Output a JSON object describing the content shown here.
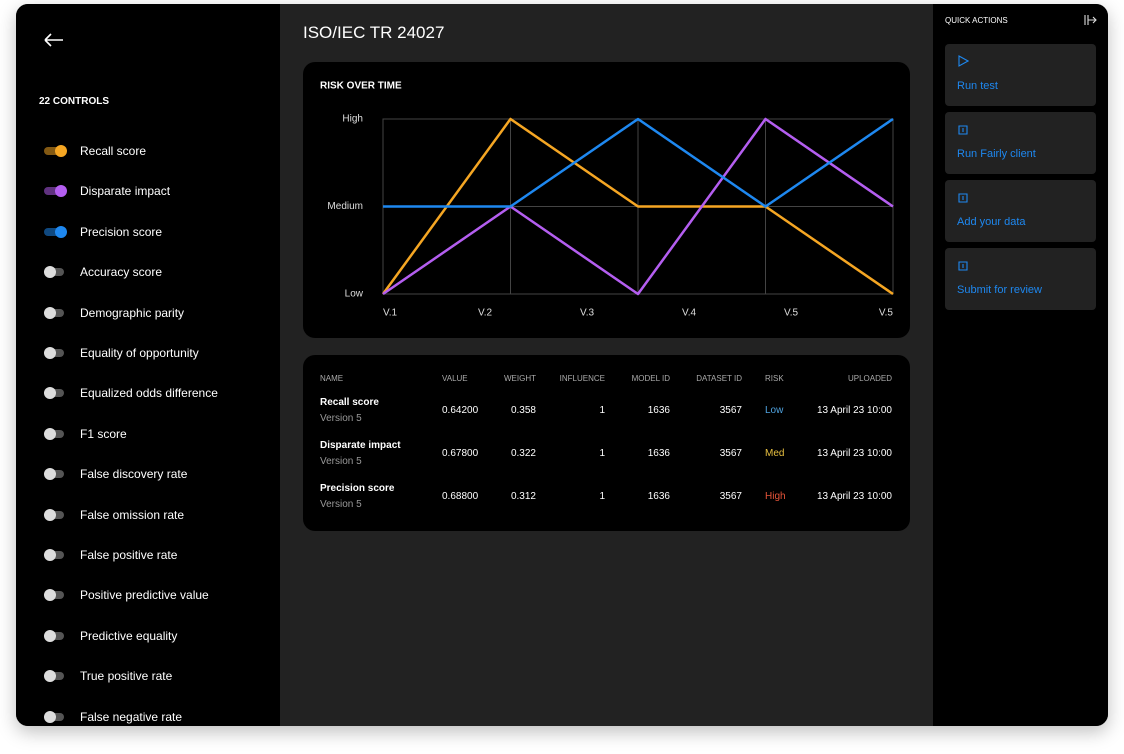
{
  "sidebar": {
    "heading": "22 CONTROLS",
    "controls": [
      {
        "label": "Recall score",
        "on": true,
        "color": "#f5a623"
      },
      {
        "label": "Disparate impact",
        "on": true,
        "color": "#b45ef0"
      },
      {
        "label": "Precision score",
        "on": true,
        "color": "#1e88f0"
      },
      {
        "label": "Accuracy score",
        "on": false
      },
      {
        "label": "Demographic parity",
        "on": false
      },
      {
        "label": "Equality of opportunity",
        "on": false
      },
      {
        "label": "Equalized odds difference",
        "on": false
      },
      {
        "label": "F1 score",
        "on": false
      },
      {
        "label": "False discovery rate",
        "on": false
      },
      {
        "label": "False omission rate",
        "on": false
      },
      {
        "label": "False positive rate",
        "on": false
      },
      {
        "label": "Positive predictive value",
        "on": false
      },
      {
        "label": "Predictive equality",
        "on": false
      },
      {
        "label": "True positive rate",
        "on": false
      },
      {
        "label": "False negative rate",
        "on": false
      }
    ]
  },
  "header": {
    "title": "ISO/IEC TR 24027"
  },
  "chart_data": {
    "type": "line",
    "title": "RISK OVER TIME",
    "x": [
      1,
      2,
      3,
      4,
      5
    ],
    "xlim": [
      1,
      5
    ],
    "xticks": [
      {
        "value": 1,
        "label": "V.1"
      },
      {
        "value": 1.8,
        "label": "V.2"
      },
      {
        "value": 2.6,
        "label": "V.3"
      },
      {
        "value": 3.4,
        "label": "V.4"
      },
      {
        "value": 4.2,
        "label": "V.5"
      },
      {
        "value": 5,
        "label": "V.5"
      }
    ],
    "ylim": [
      0,
      2
    ],
    "yticks": [
      {
        "value": 0,
        "label": "Low"
      },
      {
        "value": 1,
        "label": "Medium"
      },
      {
        "value": 2,
        "label": "High"
      }
    ],
    "grid": true,
    "series": [
      {
        "name": "Recall score",
        "color": "#f5a623",
        "values": [
          0,
          2,
          1,
          1,
          0
        ]
      },
      {
        "name": "Disparate impact",
        "color": "#b45ef0",
        "values": [
          0,
          1,
          0,
          2,
          1
        ]
      },
      {
        "name": "Precision score",
        "color": "#1e88f0",
        "values": [
          1,
          1,
          2,
          1,
          2
        ]
      }
    ]
  },
  "table": {
    "columns": [
      "NAME",
      "VALUE",
      "WEIGHT",
      "INFLUENCE",
      "MODEL ID",
      "DATASET ID",
      "RISK",
      "UPLOADED"
    ],
    "rows": [
      {
        "name": "Recall score",
        "version": "Version 5",
        "cells": [
          "0.64200",
          "0.358",
          "1",
          "1636",
          "3567"
        ],
        "risk": "Low",
        "risk_color": "#4fa3e0",
        "uploaded": "13 April 23 10:00"
      },
      {
        "name": "Disparate impact",
        "version": "Version 5",
        "cells": [
          "0.67800",
          "0.322",
          "1",
          "1636",
          "3567"
        ],
        "risk": "Med",
        "risk_color": "#e8c040",
        "uploaded": "13 April 23 10:00"
      },
      {
        "name": "Precision score",
        "version": "Version 5",
        "cells": [
          "0.68800",
          "0.312",
          "1",
          "1636",
          "3567"
        ],
        "risk": "High",
        "risk_color": "#e8553a",
        "uploaded": "13 April 23 10:00"
      }
    ]
  },
  "quick_actions": {
    "heading": "QUICK ACTIONS",
    "actions": [
      "Run test",
      "Run Fairly client",
      "Add your data",
      "Submit for review"
    ]
  }
}
